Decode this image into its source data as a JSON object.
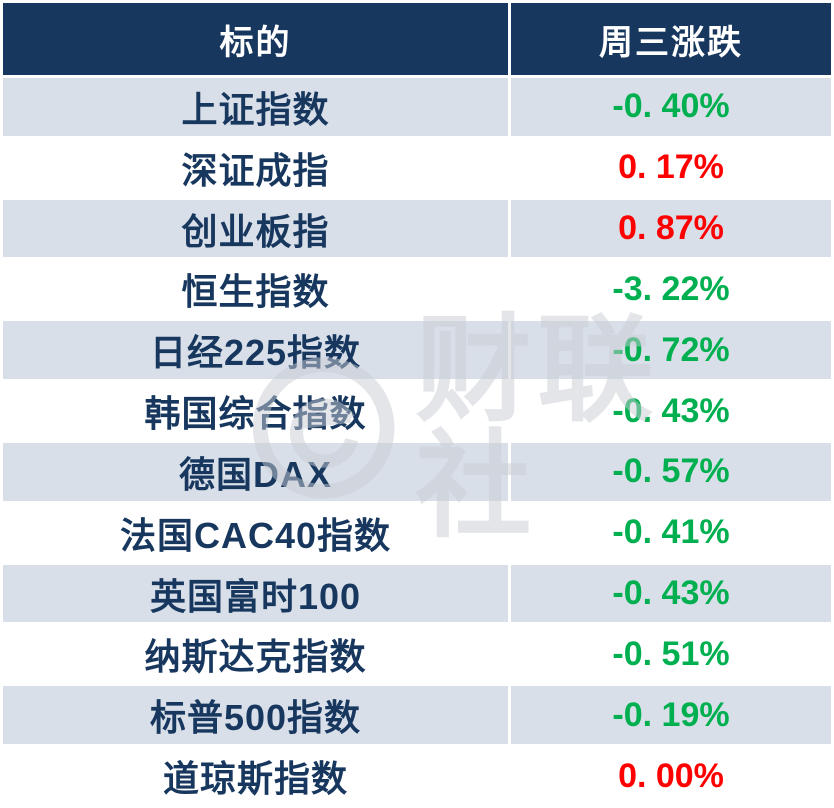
{
  "chart_data": {
    "type": "table",
    "columns": [
      "标的",
      "周三涨跌"
    ],
    "rows": [
      {
        "name": "上证指数",
        "change_label": "-0. 40%",
        "change_value": -0.4,
        "tone": "negative"
      },
      {
        "name": "深证成指",
        "change_label": "0. 17%",
        "change_value": 0.17,
        "tone": "positive"
      },
      {
        "name": "创业板指",
        "change_label": "0. 87%",
        "change_value": 0.87,
        "tone": "positive"
      },
      {
        "name": "恒生指数",
        "change_label": "-3. 22%",
        "change_value": -3.22,
        "tone": "negative"
      },
      {
        "name": "日经225指数",
        "change_label": "-0. 72%",
        "change_value": -0.72,
        "tone": "negative"
      },
      {
        "name": "韩国综合指数",
        "change_label": "-0. 43%",
        "change_value": -0.43,
        "tone": "negative"
      },
      {
        "name": "德国DAX",
        "change_label": "-0. 57%",
        "change_value": -0.57,
        "tone": "negative"
      },
      {
        "name": "法国CAC40指数",
        "change_label": "-0. 41%",
        "change_value": -0.41,
        "tone": "negative"
      },
      {
        "name": "英国富时100",
        "change_label": "-0. 43%",
        "change_value": -0.43,
        "tone": "negative"
      },
      {
        "name": "纳斯达克指数",
        "change_label": "-0. 51%",
        "change_value": -0.51,
        "tone": "negative"
      },
      {
        "name": "标普500指数",
        "change_label": "-0. 19%",
        "change_value": -0.19,
        "tone": "negative"
      },
      {
        "name": "道琼斯指数",
        "change_label": "0. 00%",
        "change_value": 0.0,
        "tone": "positive"
      }
    ]
  },
  "colors": {
    "header_bg": "#17375e",
    "header_text": "#ffffff",
    "row_shade_bg": "#d8dfe9",
    "row_plain_bg": "#ffffff",
    "name_text": "#17375e",
    "positive": "#ff0000",
    "negative": "#00b050"
  },
  "watermark": {
    "text": "财联社",
    "logo": "cailianshe-logo"
  }
}
